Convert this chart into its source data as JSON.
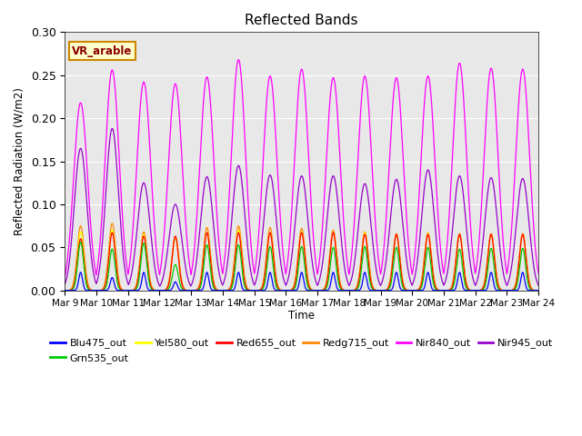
{
  "title": "Reflected Bands",
  "xlabel": "Time",
  "ylabel": "Reflected Radiation (W/m2)",
  "annotation": "VR_arable",
  "ylim": [
    0,
    0.3
  ],
  "yticks": [
    0.0,
    0.05,
    0.1,
    0.15,
    0.2,
    0.25,
    0.3
  ],
  "xtick_labels": [
    "Mar 9",
    "Mar 10",
    "Mar 11",
    "Mar 12",
    "Mar 13",
    "Mar 14",
    "Mar 15",
    "Mar 16",
    "Mar 17",
    "Mar 18",
    "Mar 19",
    "Mar 20",
    "Mar 21",
    "Mar 22",
    "Mar 23",
    "Mar 24"
  ],
  "colors": {
    "Blu475_out": "#0000ff",
    "Grn535_out": "#00cc00",
    "Yel580_out": "#ffff00",
    "Red655_out": "#ff0000",
    "Redg715_out": "#ff8800",
    "Nir840_out": "#ff00ff",
    "Nir945_out": "#9900cc"
  },
  "peak_heights": {
    "Blu475_out": [
      0.021,
      0.015,
      0.021,
      0.01,
      0.021,
      0.021,
      0.021,
      0.021,
      0.021,
      0.021,
      0.021,
      0.021,
      0.021,
      0.021,
      0.021
    ],
    "Grn535_out": [
      0.056,
      0.048,
      0.055,
      0.03,
      0.053,
      0.053,
      0.051,
      0.051,
      0.05,
      0.051,
      0.05,
      0.05,
      0.048,
      0.049,
      0.049
    ],
    "Yel580_out": [
      0.068,
      0.07,
      0.065,
      0.062,
      0.067,
      0.07,
      0.067,
      0.068,
      0.067,
      0.067,
      0.065,
      0.066,
      0.065,
      0.065,
      0.065
    ],
    "Red655_out": [
      0.06,
      0.067,
      0.063,
      0.063,
      0.067,
      0.067,
      0.067,
      0.067,
      0.067,
      0.065,
      0.065,
      0.065,
      0.065,
      0.065,
      0.065
    ],
    "Redg715_out": [
      0.075,
      0.078,
      0.068,
      0.062,
      0.073,
      0.075,
      0.073,
      0.072,
      0.07,
      0.068,
      0.066,
      0.067,
      0.066,
      0.066,
      0.066
    ],
    "Nir840_out": [
      0.218,
      0.256,
      0.242,
      0.24,
      0.248,
      0.268,
      0.249,
      0.257,
      0.247,
      0.249,
      0.247,
      0.249,
      0.264,
      0.258,
      0.257
    ],
    "Nir945_out": [
      0.165,
      0.188,
      0.125,
      0.1,
      0.132,
      0.145,
      0.134,
      0.133,
      0.133,
      0.124,
      0.129,
      0.14,
      0.133,
      0.131,
      0.13
    ]
  },
  "peak_widths": {
    "Blu475_out": 0.06,
    "Grn535_out": 0.09,
    "Yel580_out": 0.1,
    "Red655_out": 0.1,
    "Redg715_out": 0.11,
    "Nir840_out": 0.22,
    "Nir945_out": 0.2
  },
  "background_color": "#e8e8e8",
  "figure_facecolor": "#ffffff"
}
